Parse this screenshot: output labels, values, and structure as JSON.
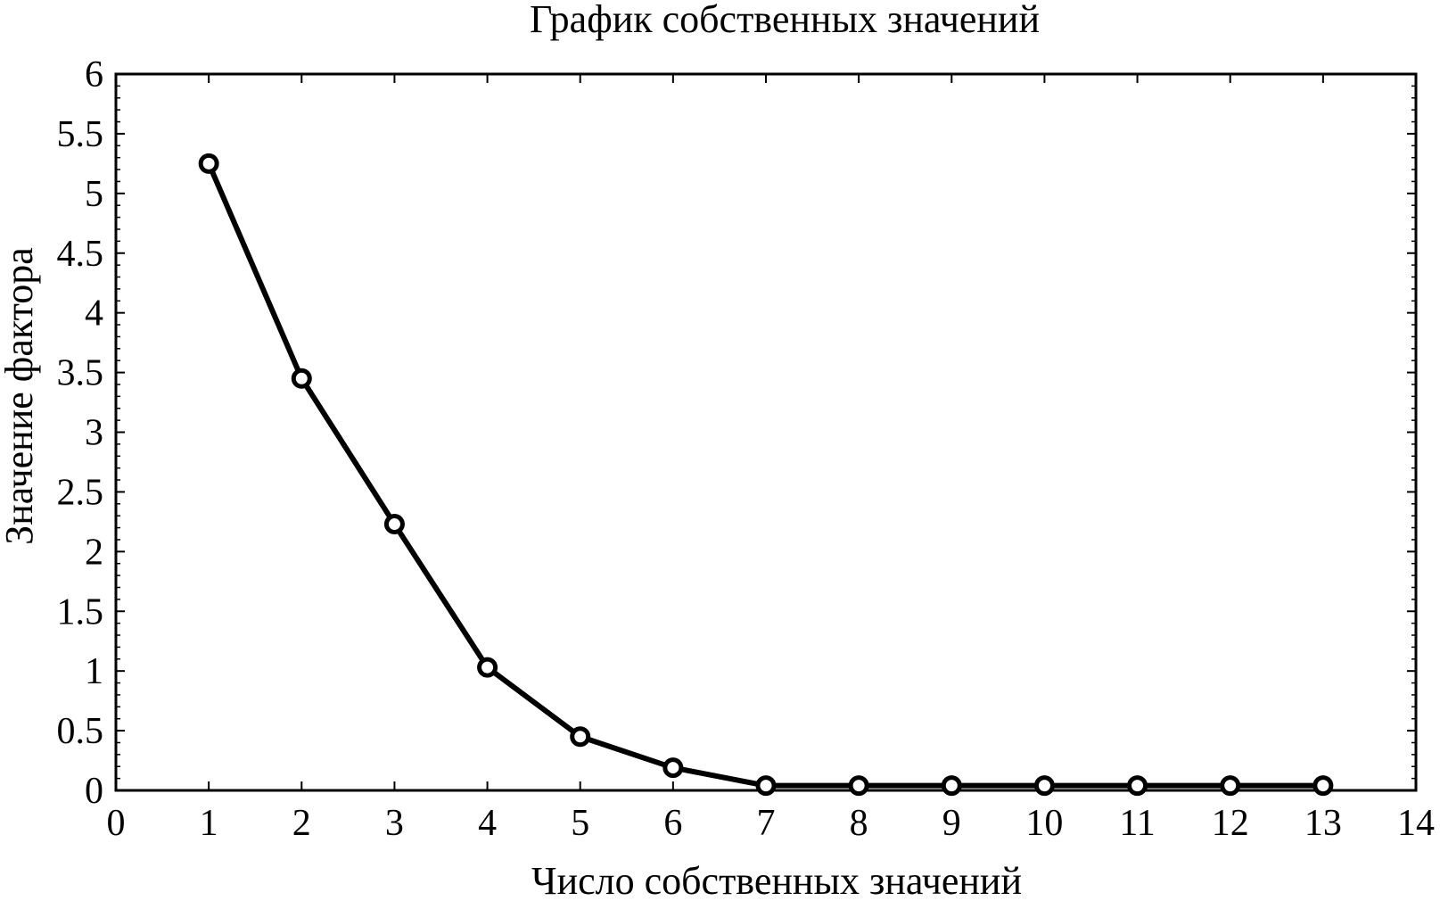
{
  "chart_data": {
    "type": "line",
    "title": "График собственных значений",
    "xlabel": "Число собственных значений",
    "ylabel": "Значение фактора",
    "x": [
      1,
      2,
      3,
      4,
      5,
      6,
      7,
      8,
      9,
      10,
      11,
      12,
      13
    ],
    "series": [
      {
        "values": [
          5.25,
          3.45,
          2.23,
          1.03,
          0.45,
          0.19,
          0.04,
          0.04,
          0.04,
          0.04,
          0.04,
          0.04,
          0.04
        ]
      }
    ],
    "xlim": [
      0,
      14
    ],
    "ylim": [
      0,
      6
    ],
    "xticks": [
      "0",
      "1",
      "2",
      "3",
      "4",
      "5",
      "6",
      "7",
      "8",
      "9",
      "10",
      "11",
      "12",
      "13",
      "14"
    ],
    "yticks": [
      "0",
      "0.5",
      "1",
      "1.5",
      "2",
      "2.5",
      "3",
      "3.5",
      "4",
      "4.5",
      "5",
      "5.5",
      "6"
    ],
    "grid": false,
    "legend": "none",
    "colors": {
      "line": "#000000",
      "marker_fill": "#ffffff",
      "axes": "#000000"
    }
  }
}
